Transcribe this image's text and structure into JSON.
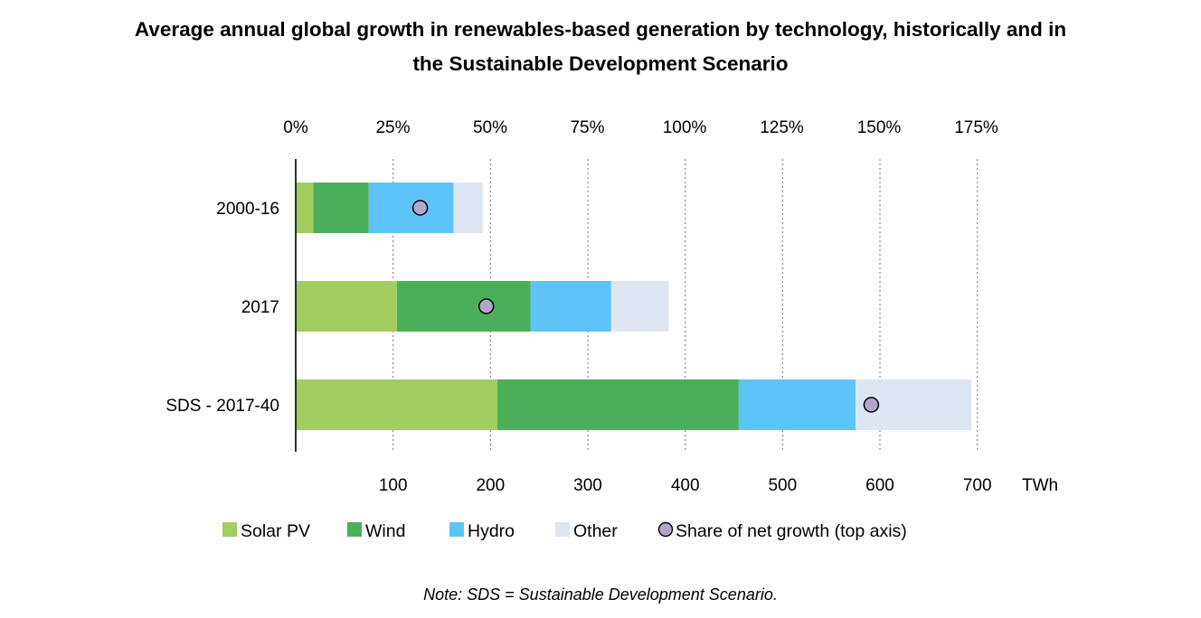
{
  "title_line1": "Average annual global growth in renewables-based generation by technology, historically and in",
  "title_line2": "the Sustainable Development Scenario",
  "note": "Note: SDS = Sustainable Development Scenario.",
  "chart_data": {
    "type": "bar",
    "orientation": "horizontal",
    "stacked": true,
    "categories": [
      "2000-16",
      "2017",
      "SDS - 2017-40"
    ],
    "series": [
      {
        "name": "Solar PV",
        "color": "#a2cd5f",
        "values": [
          18,
          104,
          207
        ]
      },
      {
        "name": "Wind",
        "color": "#4baf5a",
        "values": [
          57,
          137,
          248
        ]
      },
      {
        "name": "Hydro",
        "color": "#5ec4f7",
        "values": [
          87,
          83,
          120
        ]
      },
      {
        "name": "Other",
        "color": "#dee6f1",
        "values": [
          30,
          59,
          119
        ]
      }
    ],
    "marker_series": {
      "name": "Share of net growth (top axis)",
      "color": "#b4a5ce",
      "values_percent": [
        32,
        49,
        148
      ]
    },
    "x_axis": {
      "ticks": [
        "100",
        "200",
        "300",
        "400",
        "500",
        "600",
        "700"
      ],
      "tick_values": [
        100,
        200,
        300,
        400,
        500,
        600,
        700
      ],
      "range": [
        0,
        700
      ],
      "unit": "TWh"
    },
    "top_axis": {
      "ticks": [
        "0%",
        "25%",
        "50%",
        "75%",
        "100%",
        "125%",
        "150%",
        "175%"
      ],
      "tick_values": [
        0,
        25,
        50,
        75,
        100,
        125,
        150,
        175
      ],
      "range": [
        0,
        175
      ]
    },
    "gridlines": "vertical dotted",
    "legend_position": "bottom"
  }
}
